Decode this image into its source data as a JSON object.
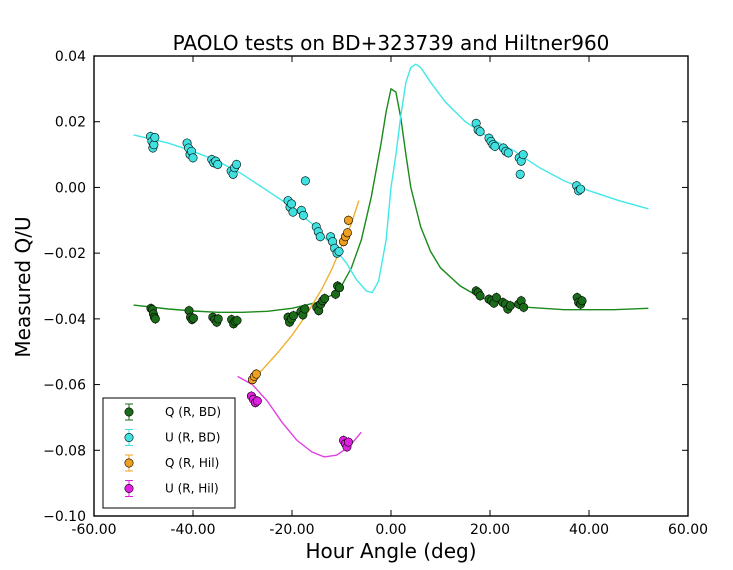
{
  "chart_data": {
    "type": "scatter",
    "title": "PAOLO tests on BD+323739 and Hiltner960",
    "xlabel": "Hour Angle (deg)",
    "ylabel": "Measured Q/U",
    "xlim": [
      -60,
      60
    ],
    "ylim": [
      -0.1,
      0.04
    ],
    "x_ticks": [
      -60,
      -40,
      -20,
      0,
      20,
      40,
      60
    ],
    "x_tick_labels": [
      "-60.00",
      "-40.00",
      "-20.00",
      "0.00",
      "20.00",
      "40.00",
      "60.00"
    ],
    "y_ticks": [
      0.04,
      0.02,
      0.0,
      -0.02,
      -0.04,
      -0.06,
      -0.08,
      -0.1
    ],
    "y_tick_labels": [
      "0.04",
      "0.02",
      "0.00",
      "−0.02",
      "−0.04",
      "−0.06",
      "−0.08",
      "−0.10"
    ],
    "grid": false,
    "legend_position": "bottom-left",
    "series": [
      {
        "name": "Q (R, BD)",
        "color": "#1a6b1a",
        "points": [
          [
            -48.5,
            -0.0368
          ],
          [
            -48.2,
            -0.0372
          ],
          [
            -48.0,
            -0.0385
          ],
          [
            -47.8,
            -0.0395
          ],
          [
            -47.6,
            -0.04
          ],
          [
            -40.8,
            -0.0375
          ],
          [
            -40.5,
            -0.0395
          ],
          [
            -40.2,
            -0.0402
          ],
          [
            -39.9,
            -0.0398
          ],
          [
            -36.0,
            -0.0395
          ],
          [
            -35.6,
            -0.0402
          ],
          [
            -35.2,
            -0.041
          ],
          [
            -34.9,
            -0.04
          ],
          [
            -32.2,
            -0.0402
          ],
          [
            -31.8,
            -0.0415
          ],
          [
            -31.5,
            -0.0408
          ],
          [
            -31.1,
            -0.0405
          ],
          [
            -20.8,
            -0.0395
          ],
          [
            -20.5,
            -0.041
          ],
          [
            -20.1,
            -0.04
          ],
          [
            -19.7,
            -0.039
          ],
          [
            -18.2,
            -0.0378
          ],
          [
            -17.8,
            -0.0388
          ],
          [
            -17.4,
            -0.037
          ],
          [
            -15.0,
            -0.0365
          ],
          [
            -14.6,
            -0.0375
          ],
          [
            -14.2,
            -0.0355
          ],
          [
            -13.8,
            -0.0345
          ],
          [
            -13.4,
            -0.0338
          ],
          [
            -11.2,
            -0.0325
          ],
          [
            -10.8,
            -0.03
          ],
          [
            -10.4,
            -0.0305
          ],
          [
            17.2,
            -0.0315
          ],
          [
            17.6,
            -0.032
          ],
          [
            18.0,
            -0.033
          ],
          [
            19.8,
            -0.034
          ],
          [
            20.3,
            -0.0345
          ],
          [
            20.8,
            -0.0352
          ],
          [
            21.3,
            -0.0335
          ],
          [
            22.6,
            -0.035
          ],
          [
            23.1,
            -0.0355
          ],
          [
            23.6,
            -0.037
          ],
          [
            24.1,
            -0.036
          ],
          [
            25.8,
            -0.0355
          ],
          [
            26.3,
            -0.0345
          ],
          [
            26.8,
            -0.0365
          ],
          [
            37.6,
            -0.0335
          ],
          [
            37.9,
            -0.035
          ],
          [
            38.3,
            -0.0355
          ],
          [
            38.6,
            -0.0345
          ]
        ]
      },
      {
        "name": "U (R, BD)",
        "color": "#40e0e0",
        "points": [
          [
            -48.6,
            0.0155
          ],
          [
            -48.3,
            0.014
          ],
          [
            -48.1,
            0.012
          ],
          [
            -47.9,
            0.013
          ],
          [
            -47.7,
            0.0152
          ],
          [
            -41.2,
            0.0135
          ],
          [
            -40.9,
            0.012
          ],
          [
            -40.6,
            0.01
          ],
          [
            -40.3,
            0.011
          ],
          [
            -40.0,
            0.009
          ],
          [
            -36.2,
            0.0085
          ],
          [
            -35.8,
            0.0075
          ],
          [
            -35.4,
            0.008
          ],
          [
            -35.0,
            0.007
          ],
          [
            -32.3,
            0.005
          ],
          [
            -31.9,
            0.004
          ],
          [
            -31.6,
            0.006
          ],
          [
            -31.2,
            0.007
          ],
          [
            -20.8,
            -0.004
          ],
          [
            -20.4,
            -0.006
          ],
          [
            -20.1,
            -0.005
          ],
          [
            -19.8,
            -0.0075
          ],
          [
            -18.1,
            -0.007
          ],
          [
            -17.7,
            -0.0085
          ],
          [
            -17.3,
            0.002
          ],
          [
            -15.1,
            -0.012
          ],
          [
            -14.7,
            -0.0135
          ],
          [
            -14.3,
            -0.015
          ],
          [
            -12.2,
            -0.015
          ],
          [
            -11.8,
            -0.0165
          ],
          [
            -11.4,
            -0.0185
          ],
          [
            -10.9,
            -0.02
          ],
          [
            -10.5,
            -0.0195
          ],
          [
            17.2,
            0.0195
          ],
          [
            17.6,
            0.0175
          ],
          [
            18.0,
            0.017
          ],
          [
            19.8,
            0.015
          ],
          [
            20.2,
            0.014
          ],
          [
            20.6,
            0.013
          ],
          [
            21.0,
            0.0125
          ],
          [
            22.7,
            0.012
          ],
          [
            23.2,
            0.011
          ],
          [
            23.7,
            0.0105
          ],
          [
            25.9,
            0.009
          ],
          [
            26.3,
            0.008
          ],
          [
            26.7,
            0.01
          ],
          [
            26.1,
            0.004
          ],
          [
            37.5,
            0.0005
          ],
          [
            37.9,
            -0.001
          ],
          [
            38.3,
            -0.0005
          ]
        ]
      },
      {
        "name": "Q (R, Hil)",
        "color": "#f0a020",
        "points": [
          [
            -28.0,
            -0.0585
          ],
          [
            -27.6,
            -0.0575
          ],
          [
            -27.2,
            -0.0568
          ],
          [
            -9.6,
            -0.0165
          ],
          [
            -9.2,
            -0.015
          ],
          [
            -8.8,
            -0.0138
          ],
          [
            -8.6,
            -0.01
          ]
        ]
      },
      {
        "name": "U (R, Hil)",
        "color": "#e020e0",
        "points": [
          [
            -28.2,
            -0.0635
          ],
          [
            -27.8,
            -0.0645
          ],
          [
            -27.4,
            -0.0655
          ],
          [
            -27.0,
            -0.065
          ],
          [
            -9.6,
            -0.077
          ],
          [
            -9.2,
            -0.078
          ],
          [
            -8.9,
            -0.079
          ],
          [
            -8.6,
            -0.0775
          ]
        ]
      }
    ],
    "model_curves": [
      {
        "color": "#1a8a1a",
        "points": [
          [
            -52,
            -0.0358
          ],
          [
            -45,
            -0.037
          ],
          [
            -40,
            -0.0376
          ],
          [
            -35,
            -0.038
          ],
          [
            -30,
            -0.038
          ],
          [
            -25,
            -0.0377
          ],
          [
            -20,
            -0.0368
          ],
          [
            -15,
            -0.035
          ],
          [
            -12,
            -0.0328
          ],
          [
            -10,
            -0.03
          ],
          [
            -8,
            -0.0245
          ],
          [
            -6,
            -0.016
          ],
          [
            -4,
            -0.003
          ],
          [
            -2,
            0.0135
          ],
          [
            -1,
            0.023
          ],
          [
            0,
            0.03
          ],
          [
            1,
            0.029
          ],
          [
            2,
            0.021
          ],
          [
            3,
            0.01
          ],
          [
            4,
            0.0
          ],
          [
            6,
            -0.012
          ],
          [
            8,
            -0.0195
          ],
          [
            10,
            -0.0245
          ],
          [
            14,
            -0.03
          ],
          [
            18,
            -0.0335
          ],
          [
            22,
            -0.035
          ],
          [
            28,
            -0.0365
          ],
          [
            35,
            -0.0372
          ],
          [
            45,
            -0.0372
          ],
          [
            52,
            -0.0368
          ]
        ]
      },
      {
        "color": "#40e8e8",
        "points": [
          [
            -52,
            0.016
          ],
          [
            -45,
            0.0135
          ],
          [
            -40,
            0.011
          ],
          [
            -35,
            0.008
          ],
          [
            -30,
            0.004
          ],
          [
            -25,
            -0.001
          ],
          [
            -20,
            -0.006
          ],
          [
            -16,
            -0.011
          ],
          [
            -12,
            -0.0175
          ],
          [
            -9,
            -0.023
          ],
          [
            -7,
            -0.028
          ],
          [
            -5,
            -0.0315
          ],
          [
            -3.8,
            -0.032
          ],
          [
            -2.5,
            -0.0285
          ],
          [
            -1,
            -0.016
          ],
          [
            0,
            0.0
          ],
          [
            1,
            0.01
          ],
          [
            2,
            0.022
          ],
          [
            3,
            0.032
          ],
          [
            4,
            0.0365
          ],
          [
            5,
            0.0375
          ],
          [
            6,
            0.0365
          ],
          [
            8,
            0.032
          ],
          [
            11,
            0.026
          ],
          [
            15,
            0.02
          ],
          [
            20,
            0.015
          ],
          [
            25,
            0.011
          ],
          [
            30,
            0.006
          ],
          [
            35,
            0.002
          ],
          [
            40,
            -0.001
          ],
          [
            46,
            -0.004
          ],
          [
            52,
            -0.0065
          ]
        ]
      },
      {
        "color": "#f0b030",
        "points": [
          [
            -28.5,
            -0.059
          ],
          [
            -26,
            -0.0555
          ],
          [
            -23,
            -0.0505
          ],
          [
            -20,
            -0.045
          ],
          [
            -17,
            -0.0385
          ],
          [
            -14,
            -0.031
          ],
          [
            -12,
            -0.025
          ],
          [
            -10,
            -0.018
          ],
          [
            -8,
            -0.011
          ],
          [
            -6.5,
            -0.004
          ]
        ]
      },
      {
        "color": "#e040e0",
        "points": [
          [
            -31,
            -0.0575
          ],
          [
            -28,
            -0.06
          ],
          [
            -25,
            -0.065
          ],
          [
            -22,
            -0.0715
          ],
          [
            -19,
            -0.077
          ],
          [
            -16,
            -0.0805
          ],
          [
            -13.5,
            -0.082
          ],
          [
            -11,
            -0.0815
          ],
          [
            -8.5,
            -0.079
          ],
          [
            -6,
            -0.0745
          ]
        ]
      }
    ]
  }
}
